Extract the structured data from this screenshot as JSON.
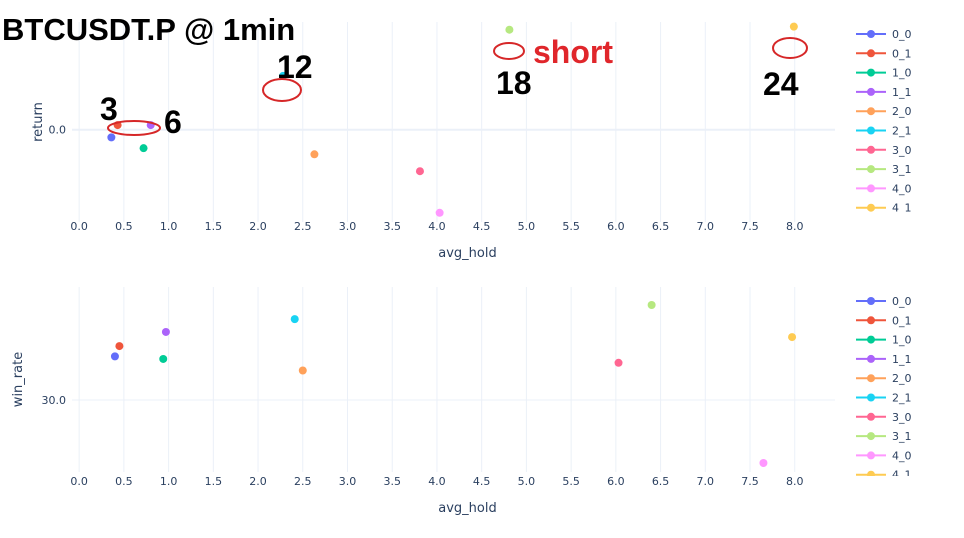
{
  "title": "BTCUSDT.P @ 1min",
  "colors": {
    "0_0": "#636efa",
    "0_1": "#ef553b",
    "1_0": "#00cc96",
    "1_1": "#ab63fa",
    "2_0": "#ffa15a",
    "2_1": "#19d3f3",
    "3_0": "#ff6692",
    "3_1": "#b6e880",
    "4_0": "#ff97ff",
    "4_1": "#fecb52",
    "grid": "#ebf0f8",
    "axis_text": "#2a3f5f",
    "annotation_red": "#e0262b"
  },
  "annotations": [
    "3",
    "6",
    "12",
    "18",
    "short",
    "24"
  ],
  "chart_data": [
    {
      "type": "scatter",
      "xlabel": "avg_hold",
      "ylabel": "return",
      "x_ticks": [
        "0.0",
        "0.5",
        "1.0",
        "1.5",
        "2.0",
        "2.5",
        "3.0",
        "3.5",
        "4.0",
        "4.5",
        "5.0",
        "5.5",
        "6.0",
        "6.5",
        "7.0",
        "7.5",
        "8.0"
      ],
      "y_ticks": [
        "0.0"
      ],
      "xlim": [
        -0.08,
        8.45
      ],
      "ylim": [
        -0.06,
        0.07
      ],
      "grid": true,
      "legend_position": "right",
      "series": [
        {
          "name": "0_0",
          "x": 0.36,
          "y": -0.005
        },
        {
          "name": "0_1",
          "x": 0.43,
          "y": 0.003
        },
        {
          "name": "1_0",
          "x": 0.72,
          "y": -0.012
        },
        {
          "name": "1_1",
          "x": 0.8,
          "y": 0.003
        },
        {
          "name": "2_0",
          "x": 2.63,
          "y": -0.016
        },
        {
          "name": "2_1",
          "x": 2.28,
          "y": 0.035
        },
        {
          "name": "3_0",
          "x": 3.81,
          "y": -0.027
        },
        {
          "name": "3_1",
          "x": 4.81,
          "y": 0.065
        },
        {
          "name": "4_0",
          "x": 4.03,
          "y": -0.054
        },
        {
          "name": "4_1",
          "x": 7.99,
          "y": 0.067
        }
      ]
    },
    {
      "type": "scatter",
      "xlabel": "avg_hold",
      "ylabel": "win_rate",
      "x_ticks": [
        "0.0",
        "0.5",
        "1.0",
        "1.5",
        "2.0",
        "2.5",
        "3.0",
        "3.5",
        "4.0",
        "4.5",
        "5.0",
        "5.5",
        "6.0",
        "6.5",
        "7.0",
        "7.5",
        "8.0"
      ],
      "y_ticks": [
        "30.0"
      ],
      "xlim": [
        -0.08,
        8.45
      ],
      "ylim": [
        24.4,
        38.8
      ],
      "grid": true,
      "legend_position": "right",
      "series": [
        {
          "name": "0_0",
          "x": 0.4,
          "y": 33.4
        },
        {
          "name": "0_1",
          "x": 0.45,
          "y": 34.2
        },
        {
          "name": "1_0",
          "x": 0.94,
          "y": 33.2
        },
        {
          "name": "1_1",
          "x": 0.97,
          "y": 35.3
        },
        {
          "name": "2_0",
          "x": 2.5,
          "y": 32.3
        },
        {
          "name": "2_1",
          "x": 2.41,
          "y": 36.3
        },
        {
          "name": "3_0",
          "x": 6.03,
          "y": 32.9
        },
        {
          "name": "3_1",
          "x": 6.4,
          "y": 37.4
        },
        {
          "name": "4_0",
          "x": 7.65,
          "y": 25.1
        },
        {
          "name": "4_1",
          "x": 7.97,
          "y": 34.9
        }
      ]
    }
  ]
}
